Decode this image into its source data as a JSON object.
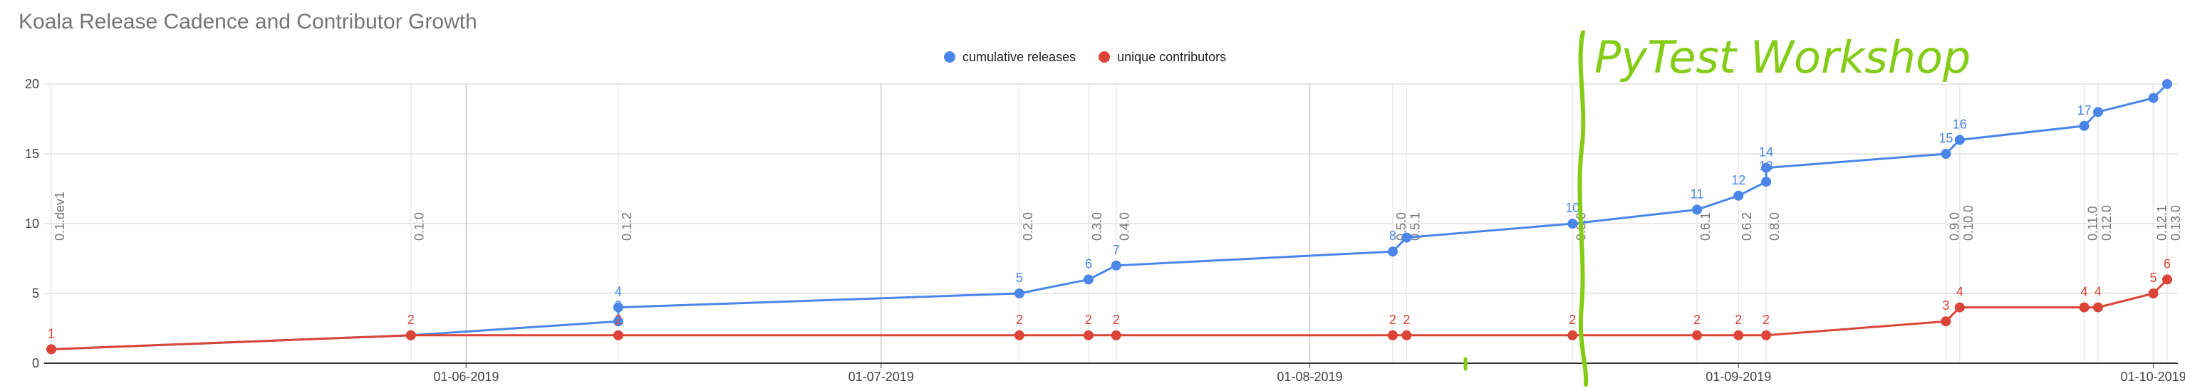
{
  "chart_data": {
    "type": "line",
    "title": "Koala Release Cadence and Contributor Growth",
    "xlabel": "",
    "ylabel": "",
    "ylim": [
      0,
      20
    ],
    "y_ticks": [
      "0",
      "5",
      "10",
      "15",
      "20"
    ],
    "x_ticks": [
      "01-06-2019",
      "01-07-2019",
      "01-08-2019",
      "01-09-2019",
      "01-10-2019"
    ],
    "grid": true,
    "legend_position": "top",
    "colors": {
      "cumulative": "#4a86e8",
      "contributors": "#db4437",
      "annotation_line": "#d9d9d9",
      "handwriting": "#84cc16"
    },
    "series": [
      {
        "name": "cumulative releases",
        "points": [
          {
            "x": "2019-05-02",
            "y": 1,
            "label": ""
          },
          {
            "x": "2019-05-28",
            "y": 2,
            "label": ""
          },
          {
            "x": "2019-06-12",
            "y": 3,
            "label": "3"
          },
          {
            "x": "2019-06-12",
            "y": 4,
            "label": "4"
          },
          {
            "x": "2019-07-11",
            "y": 5,
            "label": "5"
          },
          {
            "x": "2019-07-16",
            "y": 6,
            "label": "6"
          },
          {
            "x": "2019-07-18",
            "y": 7,
            "label": "7"
          },
          {
            "x": "2019-08-07",
            "y": 8,
            "label": "8"
          },
          {
            "x": "2019-08-08",
            "y": 9,
            "label": ""
          },
          {
            "x": "2019-08-20",
            "y": 10,
            "label": "10"
          },
          {
            "x": "2019-08-29",
            "y": 11,
            "label": "11"
          },
          {
            "x": "2019-09-01",
            "y": 12,
            "label": "12"
          },
          {
            "x": "2019-09-03",
            "y": 13,
            "label": "13"
          },
          {
            "x": "2019-09-03",
            "y": 14,
            "label": "14"
          },
          {
            "x": "2019-09-16",
            "y": 15,
            "label": "15"
          },
          {
            "x": "2019-09-17",
            "y": 16,
            "label": "16"
          },
          {
            "x": "2019-09-26",
            "y": 17,
            "label": "17"
          },
          {
            "x": "2019-09-27",
            "y": 18,
            "label": ""
          },
          {
            "x": "2019-10-01",
            "y": 19,
            "label": ""
          },
          {
            "x": "2019-10-02",
            "y": 20,
            "label": ""
          }
        ]
      },
      {
        "name": "unique contributors",
        "points": [
          {
            "x": "2019-05-02",
            "y": 1,
            "label": "1"
          },
          {
            "x": "2019-05-28",
            "y": 2,
            "label": "2"
          },
          {
            "x": "2019-06-12",
            "y": 2,
            "label": "2"
          },
          {
            "x": "2019-07-11",
            "y": 2,
            "label": "2"
          },
          {
            "x": "2019-07-16",
            "y": 2,
            "label": "2"
          },
          {
            "x": "2019-07-18",
            "y": 2,
            "label": "2"
          },
          {
            "x": "2019-08-07",
            "y": 2,
            "label": "2"
          },
          {
            "x": "2019-08-08",
            "y": 2,
            "label": "2"
          },
          {
            "x": "2019-08-20",
            "y": 2,
            "label": "2"
          },
          {
            "x": "2019-08-29",
            "y": 2,
            "label": "2"
          },
          {
            "x": "2019-09-01",
            "y": 2,
            "label": "2"
          },
          {
            "x": "2019-09-03",
            "y": 2,
            "label": "2"
          },
          {
            "x": "2019-09-16",
            "y": 3,
            "label": "3"
          },
          {
            "x": "2019-09-17",
            "y": 4,
            "label": "4"
          },
          {
            "x": "2019-09-26",
            "y": 4,
            "label": "4"
          },
          {
            "x": "2019-09-27",
            "y": 4,
            "label": "4"
          },
          {
            "x": "2019-10-01",
            "y": 5,
            "label": "5"
          },
          {
            "x": "2019-10-02",
            "y": 6,
            "label": "6"
          }
        ]
      }
    ],
    "annotations": [
      {
        "x": "2019-05-02",
        "label": "0.1.dev1"
      },
      {
        "x": "2019-05-28",
        "label": "0.1.0"
      },
      {
        "x": "2019-06-12",
        "label": "0.1.2"
      },
      {
        "x": "2019-07-11",
        "label": "0.2.0"
      },
      {
        "x": "2019-07-16",
        "label": "0.3.0"
      },
      {
        "x": "2019-07-18",
        "label": "0.4.0"
      },
      {
        "x": "2019-08-07",
        "label": "0.5.0"
      },
      {
        "x": "2019-08-08",
        "label": "0.5.1"
      },
      {
        "x": "2019-08-20",
        "label": "0.6.0"
      },
      {
        "x": "2019-08-29",
        "label": "0.6.1"
      },
      {
        "x": "2019-09-01",
        "label": "0.6.2"
      },
      {
        "x": "2019-09-03",
        "label": "0.8.0"
      },
      {
        "x": "2019-09-16",
        "label": "0.9.0"
      },
      {
        "x": "2019-09-17",
        "label": "0.10.0"
      },
      {
        "x": "2019-09-26",
        "label": "0.11.0"
      },
      {
        "x": "2019-09-27",
        "label": "0.12.0"
      },
      {
        "x": "2019-10-01",
        "label": "0.12.1"
      },
      {
        "x": "2019-10-02",
        "label": "0.13.0"
      }
    ],
    "handwritten_note": "PyTest Workshop"
  }
}
